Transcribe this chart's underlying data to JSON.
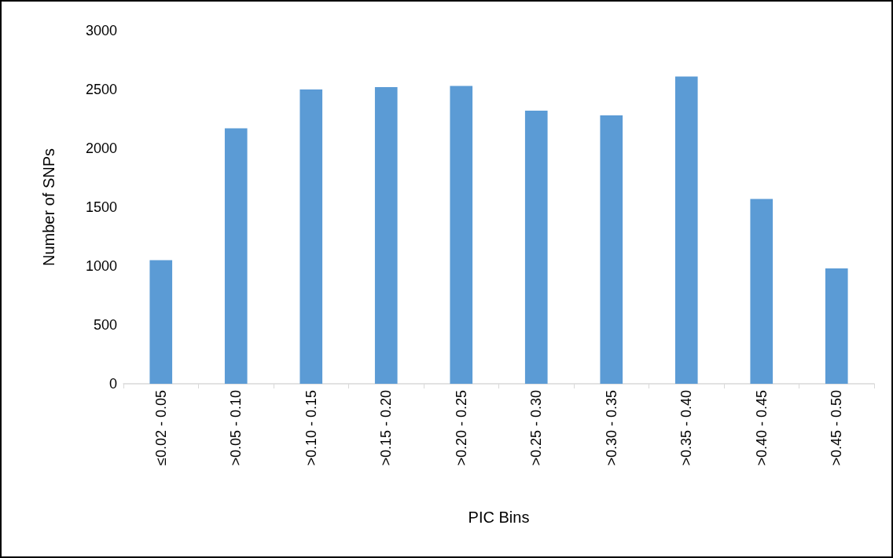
{
  "chart_data": {
    "type": "bar",
    "xlabel": "PIC Bins",
    "ylabel": "Number of SNPs",
    "categories": [
      "≤0.02 - 0.05",
      ">0.05 - 0.10",
      ">0.10 - 0.15",
      ">0.15 - 0.20",
      ">0.20 - 0.25",
      ">0.25 - 0.30",
      ">0.30 - 0.35",
      ">0.35 - 0.40",
      ">0.40 - 0.45",
      ">0.45 - 0.50"
    ],
    "values": [
      1050,
      2170,
      2500,
      2520,
      2530,
      2320,
      2280,
      2610,
      1570,
      980
    ],
    "color": "#5b9bd5",
    "ylim": [
      0,
      3000
    ],
    "yticks": [
      0,
      500,
      1000,
      1500,
      2000,
      2500,
      3000
    ],
    "grid": false
  }
}
